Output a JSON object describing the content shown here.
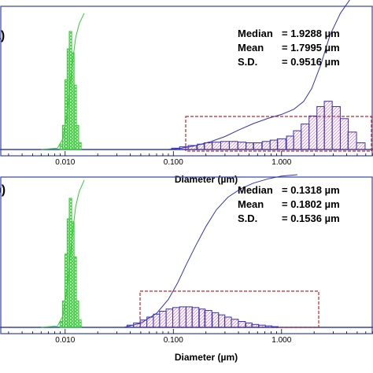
{
  "chart_data": [
    {
      "type": "bar",
      "panel_letter": "a)",
      "xlabel": "Diameter (µm)",
      "x_scale": "log",
      "xlim": [
        0.0025,
        7.0
      ],
      "x_ticks": [
        "0.010",
        "0.100",
        "1.000"
      ],
      "stats": [
        {
          "label": "Median",
          "value": "= 1.9288 µm"
        },
        {
          "label": "Mean",
          "value": "= 1.7995 µm"
        },
        {
          "label": "S.D.",
          "value": "= 0.9516 µm"
        }
      ],
      "colors": {
        "green": "#33cc33",
        "blue": "#3333bb",
        "pink": "#dd88cc",
        "box": "#cc2222",
        "frame": "#3344aa"
      },
      "series": [
        {
          "color": "green",
          "x": [
            0.0092,
            0.0097,
            0.0102,
            0.0107,
            0.0112,
            0.0118,
            0.0124,
            0.013,
            0.0137
          ],
          "values": [
            0.04,
            0.18,
            0.52,
            0.75,
            0.88,
            0.72,
            0.48,
            0.18,
            0.05
          ]
        },
        {
          "color": "blue",
          "x": [
            0.105,
            0.125,
            0.15,
            0.18,
            0.21,
            0.25,
            0.3,
            0.36,
            0.43,
            0.51,
            0.6,
            0.72,
            0.85,
            1.0,
            1.2,
            1.4,
            1.65,
            1.95,
            2.3,
            2.7,
            3.2,
            3.8,
            4.5,
            5.4
          ],
          "values": [
            0.01,
            0.02,
            0.03,
            0.04,
            0.05,
            0.055,
            0.06,
            0.06,
            0.055,
            0.05,
            0.05,
            0.06,
            0.07,
            0.08,
            0.1,
            0.14,
            0.19,
            0.25,
            0.32,
            0.36,
            0.32,
            0.23,
            0.13,
            0.05
          ]
        }
      ],
      "cumulative_curves": [
        {
          "color": "green",
          "x": [
            0.006,
            0.0085,
            0.0095,
            0.0105,
            0.0115,
            0.0125,
            0.0135,
            0.015
          ],
          "values": [
            0.0,
            0.01,
            0.08,
            0.3,
            0.62,
            0.86,
            0.97,
            1.05
          ]
        },
        {
          "color": "blue",
          "x": [
            0.09,
            0.12,
            0.16,
            0.22,
            0.3,
            0.4,
            0.55,
            0.75,
            1.0,
            1.3,
            1.6,
            1.9,
            2.3,
            2.8,
            3.5,
            4.5,
            6.0
          ],
          "values": [
            0.0,
            0.01,
            0.03,
            0.06,
            0.1,
            0.15,
            0.2,
            0.24,
            0.27,
            0.31,
            0.37,
            0.47,
            0.65,
            0.88,
            1.05,
            1.18,
            1.3
          ]
        }
      ]
    },
    {
      "type": "bar",
      "panel_letter": "b)",
      "xlabel": "Diameter (µm)",
      "x_scale": "log",
      "xlim": [
        0.0025,
        7.0
      ],
      "x_ticks": [
        "0.010",
        "0.100",
        "1.000"
      ],
      "stats": [
        {
          "label": "Median",
          "value": "= 0.1318 µm"
        },
        {
          "label": "Mean",
          "value": "= 0.1802 µm"
        },
        {
          "label": "S.D.",
          "value": "= 0.1536 µm"
        }
      ],
      "colors": {
        "green": "#33cc33",
        "blue": "#3333bb",
        "pink": "#dd88cc",
        "box": "#cc2222",
        "frame": "#3344aa"
      },
      "series": [
        {
          "color": "green",
          "x": [
            0.0092,
            0.0097,
            0.0102,
            0.0107,
            0.0112,
            0.0118,
            0.0124,
            0.013,
            0.0137
          ],
          "values": [
            0.04,
            0.18,
            0.5,
            0.74,
            0.88,
            0.72,
            0.48,
            0.18,
            0.05
          ]
        },
        {
          "color": "blue",
          "x": [
            0.04,
            0.046,
            0.053,
            0.061,
            0.07,
            0.08,
            0.092,
            0.106,
            0.122,
            0.14,
            0.16,
            0.185,
            0.21,
            0.245,
            0.28,
            0.32,
            0.37,
            0.43,
            0.5,
            0.57,
            0.66,
            0.76,
            0.87
          ],
          "values": [
            0.015,
            0.03,
            0.05,
            0.07,
            0.09,
            0.11,
            0.125,
            0.135,
            0.14,
            0.14,
            0.135,
            0.125,
            0.115,
            0.1,
            0.085,
            0.07,
            0.055,
            0.04,
            0.03,
            0.02,
            0.015,
            0.01,
            0.005
          ]
        }
      ],
      "cumulative_curves": [
        {
          "color": "green",
          "x": [
            0.006,
            0.0085,
            0.0095,
            0.0105,
            0.0115,
            0.0125,
            0.0135,
            0.015
          ],
          "values": [
            0.0,
            0.01,
            0.08,
            0.3,
            0.62,
            0.86,
            0.97,
            1.05
          ]
        },
        {
          "color": "blue",
          "x": [
            0.035,
            0.05,
            0.07,
            0.09,
            0.11,
            0.13,
            0.16,
            0.2,
            0.25,
            0.32,
            0.42,
            0.55,
            0.75,
            1.0,
            1.4
          ],
          "values": [
            0.0,
            0.03,
            0.1,
            0.2,
            0.32,
            0.44,
            0.58,
            0.72,
            0.84,
            0.93,
            0.99,
            1.03,
            1.06,
            1.08,
            1.09
          ]
        }
      ]
    }
  ]
}
